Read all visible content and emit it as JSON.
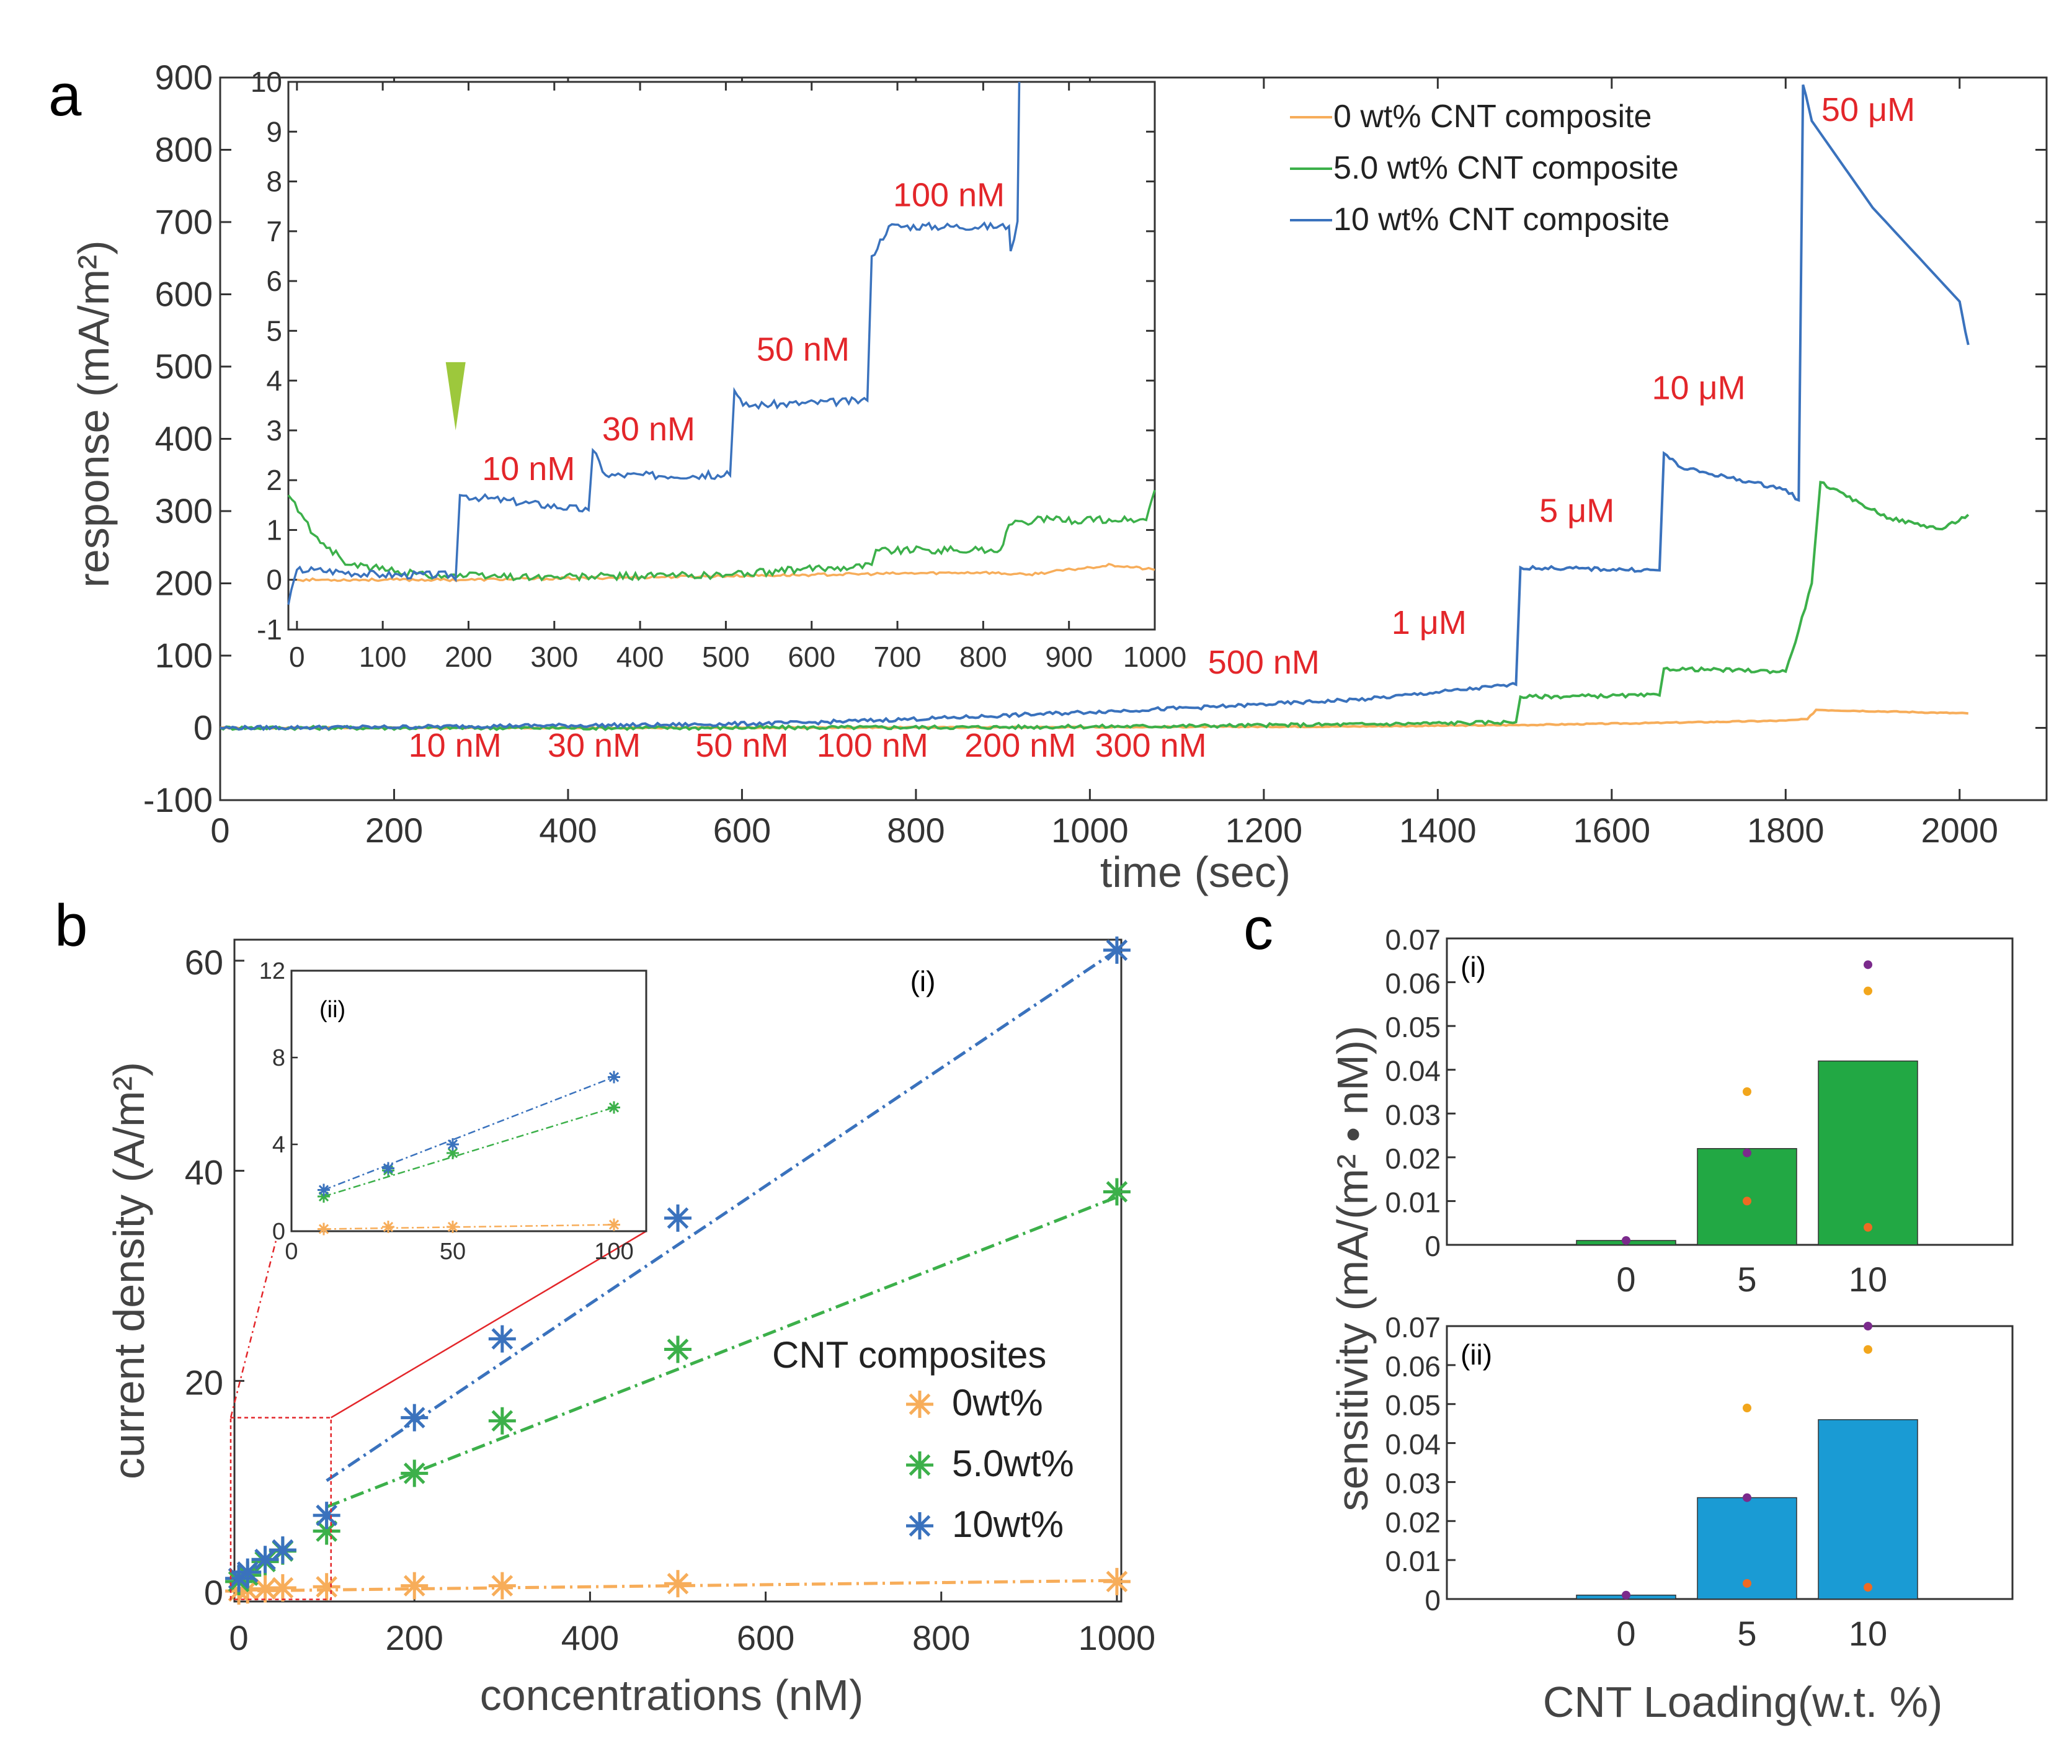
{
  "panels": {
    "a": "a",
    "b": "b",
    "c": "c"
  },
  "colors": {
    "orange": "#f7ad5a",
    "green": "#3cb04a",
    "blue": "#3a72bd",
    "red": "#e3262a",
    "bar_green": "#22a844",
    "bar_blue": "#1a9bd4",
    "purple": "#7b2a8c",
    "gold": "#f2a61c",
    "dot_orange": "#ee6a23"
  },
  "chart_data": [
    {
      "id": "a-main",
      "type": "line",
      "xlabel": "time (sec)",
      "ylabel": "response (mA/m²)",
      "xlim": [
        0,
        2100
      ],
      "ylim": [
        -100,
        900
      ],
      "xticks": [
        0,
        200,
        400,
        600,
        800,
        1000,
        1200,
        1400,
        1600,
        1800,
        2000
      ],
      "yticks": [
        -100,
        0,
        100,
        200,
        300,
        400,
        500,
        600,
        700,
        800,
        900
      ],
      "legend": [
        "0 wt% CNT composite",
        "5.0 wt% CNT composite",
        "10 wt% CNT composite"
      ],
      "series": [
        {
          "name": "0 wt% CNT composite",
          "color": "#f7ad5a",
          "x": [
            0,
            500,
            1000,
            1300,
            1500,
            1660,
            1800,
            1825,
            1835,
            2010
          ],
          "y": [
            0,
            0,
            1,
            2,
            4,
            7,
            10,
            12,
            25,
            20
          ]
        },
        {
          "name": "5.0 wt% CNT composite",
          "color": "#3cb04a",
          "x": [
            0,
            500,
            900,
            1150,
            1320,
            1490,
            1495,
            1655,
            1660,
            1800,
            1815,
            1830,
            1840,
            1870,
            1920,
            1980,
            2010
          ],
          "y": [
            0,
            0,
            1,
            3,
            5,
            8,
            43,
            45,
            82,
            78,
            135,
            200,
            340,
            320,
            290,
            275,
            295
          ]
        },
        {
          "name": "10 wt% CNT composite",
          "color": "#3a72bd",
          "x": [
            0,
            185,
            340,
            510,
            670,
            840,
            1000,
            1160,
            1320,
            1490,
            1495,
            1655,
            1660,
            1680,
            1800,
            1815,
            1820,
            1830,
            1900,
            2000,
            2010
          ],
          "y": [
            0,
            1,
            3,
            4,
            7,
            14,
            22,
            30,
            40,
            60,
            222,
            218,
            380,
            360,
            330,
            315,
            890,
            840,
            720,
            590,
            530
          ]
        }
      ],
      "annotations": [
        {
          "text": "10 nM",
          "x": 270,
          "y": -40
        },
        {
          "text": "30 nM",
          "x": 430,
          "y": -40
        },
        {
          "text": "50 nM",
          "x": 600,
          "y": -40
        },
        {
          "text": "100 nM",
          "x": 750,
          "y": -40
        },
        {
          "text": "200 nM",
          "x": 920,
          "y": -40
        },
        {
          "text": "300 nM",
          "x": 1070,
          "y": -40
        },
        {
          "text": "500 nM",
          "x": 1200,
          "y": 75
        },
        {
          "text": "1 μM",
          "x": 1390,
          "y": 130
        },
        {
          "text": "5 μM",
          "x": 1560,
          "y": 285
        },
        {
          "text": "10 μM",
          "x": 1700,
          "y": 455
        },
        {
          "text": "50 μM",
          "x": 1895,
          "y": 840
        }
      ]
    },
    {
      "id": "a-inset",
      "type": "line",
      "xlim": [
        -10,
        1000
      ],
      "ylim": [
        -1,
        10
      ],
      "xticks": [
        0,
        100,
        200,
        300,
        400,
        500,
        600,
        700,
        800,
        900,
        1000
      ],
      "yticks": [
        -1,
        0,
        1,
        2,
        3,
        4,
        5,
        6,
        7,
        8,
        9,
        10
      ],
      "series": [
        {
          "name": "0 wt% CNT composite",
          "color": "#f7ad5a",
          "x": [
            0,
            200,
            400,
            600,
            800,
            850,
            950,
            1000
          ],
          "y": [
            0,
            0,
            0.05,
            0.1,
            0.15,
            0.1,
            0.3,
            0.2
          ]
        },
        {
          "name": "5.0 wt% CNT composite",
          "color": "#3cb04a",
          "x": [
            -10,
            20,
            60,
            150,
            300,
            500,
            670,
            675,
            820,
            830,
            860,
            990,
            1000
          ],
          "y": [
            1.7,
            0.9,
            0.3,
            0.1,
            0.05,
            0.1,
            0.3,
            0.6,
            0.6,
            1.1,
            1.2,
            1.2,
            1.8
          ]
        },
        {
          "name": "10 wt% CNT composite",
          "color": "#3a72bd",
          "x": [
            -10,
            0,
            20,
            100,
            180,
            185,
            190,
            340,
            345,
            360,
            505,
            510,
            520,
            665,
            670,
            690,
            830,
            832,
            840,
            842
          ],
          "y": [
            -0.5,
            0.2,
            0.2,
            0.1,
            0.1,
            0.0,
            1.7,
            1.4,
            2.6,
            2.1,
            2.1,
            3.8,
            3.5,
            3.6,
            6.5,
            7.1,
            7.1,
            6.6,
            7.2,
            10
          ]
        }
      ],
      "annotations": [
        {
          "text": "10 nM",
          "x": 270,
          "y": 2.0
        },
        {
          "text": "30 nM",
          "x": 410,
          "y": 2.8
        },
        {
          "text": "50 nM",
          "x": 590,
          "y": 4.4
        },
        {
          "text": "100 nM",
          "x": 760,
          "y": 7.5
        }
      ],
      "marker": {
        "x": 185,
        "y": 3.0,
        "color": "#9dc83c"
      }
    },
    {
      "id": "b-main",
      "type": "scatter",
      "xlabel": "concentrations (nM)",
      "ylabel": "current density (A/m²)",
      "xlim": [
        -5,
        1005
      ],
      "ylim": [
        -1,
        62
      ],
      "xticks": [
        0,
        200,
        400,
        600,
        800,
        1000
      ],
      "yticks": [
        0,
        20,
        40,
        60
      ],
      "panel_label": "(i)",
      "legend_title": "CNT composites",
      "legend": [
        "0wt%",
        "5.0wt%",
        "10wt%"
      ],
      "series": [
        {
          "name": "0wt%",
          "color": "#f7ad5a",
          "x": [
            0,
            10,
            30,
            50,
            100,
            200,
            300,
            500,
            1000
          ],
          "y": [
            0,
            0.1,
            0.2,
            0.3,
            0.4,
            0.5,
            0.5,
            0.7,
            0.9
          ],
          "fit": [
            [
              0,
              0
            ],
            [
              1000,
              1.0
            ]
          ]
        },
        {
          "name": "5.0wt%",
          "color": "#3cb04a",
          "x": [
            0,
            10,
            30,
            50,
            100,
            200,
            300,
            500,
            1000
          ],
          "y": [
            0.9,
            1.5,
            2.8,
            3.8,
            5.7,
            11.2,
            16.2,
            23.0,
            38.0
          ],
          "fit": [
            [
              100,
              8
            ],
            [
              1000,
              37.5
            ]
          ]
        },
        {
          "name": "10wt%",
          "color": "#3a72bd",
          "x": [
            0,
            10,
            30,
            50,
            100,
            200,
            300,
            500,
            1000
          ],
          "y": [
            1.2,
            1.8,
            3.0,
            3.9,
            7.2,
            16.5,
            24.0,
            35.5,
            61.0
          ],
          "fit": [
            [
              100,
              10.5
            ],
            [
              1000,
              61.0
            ]
          ]
        }
      ]
    },
    {
      "id": "b-inset",
      "type": "scatter",
      "panel_label": "(ii)",
      "xlim": [
        0,
        110
      ],
      "ylim": [
        0,
        12
      ],
      "xticks": [
        0,
        50,
        100
      ],
      "yticks": [
        0,
        4,
        8,
        12
      ],
      "series": [
        {
          "name": "0wt%",
          "color": "#f7ad5a",
          "x": [
            10,
            30,
            50,
            100
          ],
          "y": [
            0.1,
            0.2,
            0.2,
            0.3
          ]
        },
        {
          "name": "5.0wt%",
          "color": "#3cb04a",
          "x": [
            10,
            30,
            50,
            100
          ],
          "y": [
            1.6,
            2.8,
            3.6,
            5.7
          ]
        },
        {
          "name": "10wt%",
          "color": "#3a72bd",
          "x": [
            10,
            30,
            50,
            100
          ],
          "y": [
            1.9,
            2.9,
            4.0,
            7.1
          ]
        }
      ]
    },
    {
      "id": "c-i",
      "type": "bar",
      "panel_label": "(i)",
      "categories": [
        "0",
        "5",
        "10"
      ],
      "values": [
        0.001,
        0.022,
        0.042
      ],
      "ylim": [
        0,
        0.07
      ],
      "yticks": [
        "0",
        "0.01",
        "0.02",
        "0.03",
        "0.04",
        "0.05",
        "0.06",
        "0.07"
      ],
      "ylabel": "sensitivity (mA/(m² • nM))",
      "dots": [
        {
          "cat": 0,
          "v": 0.001,
          "c": "#7b2a8c"
        },
        {
          "cat": 1,
          "v": 0.035,
          "c": "#f2a61c"
        },
        {
          "cat": 1,
          "v": 0.021,
          "c": "#7b2a8c"
        },
        {
          "cat": 1,
          "v": 0.01,
          "c": "#ee6a23"
        },
        {
          "cat": 2,
          "v": 0.064,
          "c": "#7b2a8c"
        },
        {
          "cat": 2,
          "v": 0.058,
          "c": "#f2a61c"
        },
        {
          "cat": 2,
          "v": 0.004,
          "c": "#ee6a23"
        }
      ]
    },
    {
      "id": "c-ii",
      "type": "bar",
      "panel_label": "(ii)",
      "categories": [
        "0",
        "5",
        "10"
      ],
      "values": [
        0.001,
        0.026,
        0.046
      ],
      "ylim": [
        0,
        0.07
      ],
      "yticks": [
        "0",
        "0.01",
        "0.02",
        "0.03",
        "0.04",
        "0.05",
        "0.06",
        "0.07"
      ],
      "xlabel": "CNT Loading(w.t. %)",
      "dots": [
        {
          "cat": 0,
          "v": 0.001,
          "c": "#7b2a8c"
        },
        {
          "cat": 1,
          "v": 0.049,
          "c": "#f2a61c"
        },
        {
          "cat": 1,
          "v": 0.026,
          "c": "#7b2a8c"
        },
        {
          "cat": 1,
          "v": 0.004,
          "c": "#ee6a23"
        },
        {
          "cat": 2,
          "v": 0.07,
          "c": "#7b2a8c"
        },
        {
          "cat": 2,
          "v": 0.064,
          "c": "#f2a61c"
        },
        {
          "cat": 2,
          "v": 0.003,
          "c": "#ee6a23"
        }
      ]
    }
  ]
}
